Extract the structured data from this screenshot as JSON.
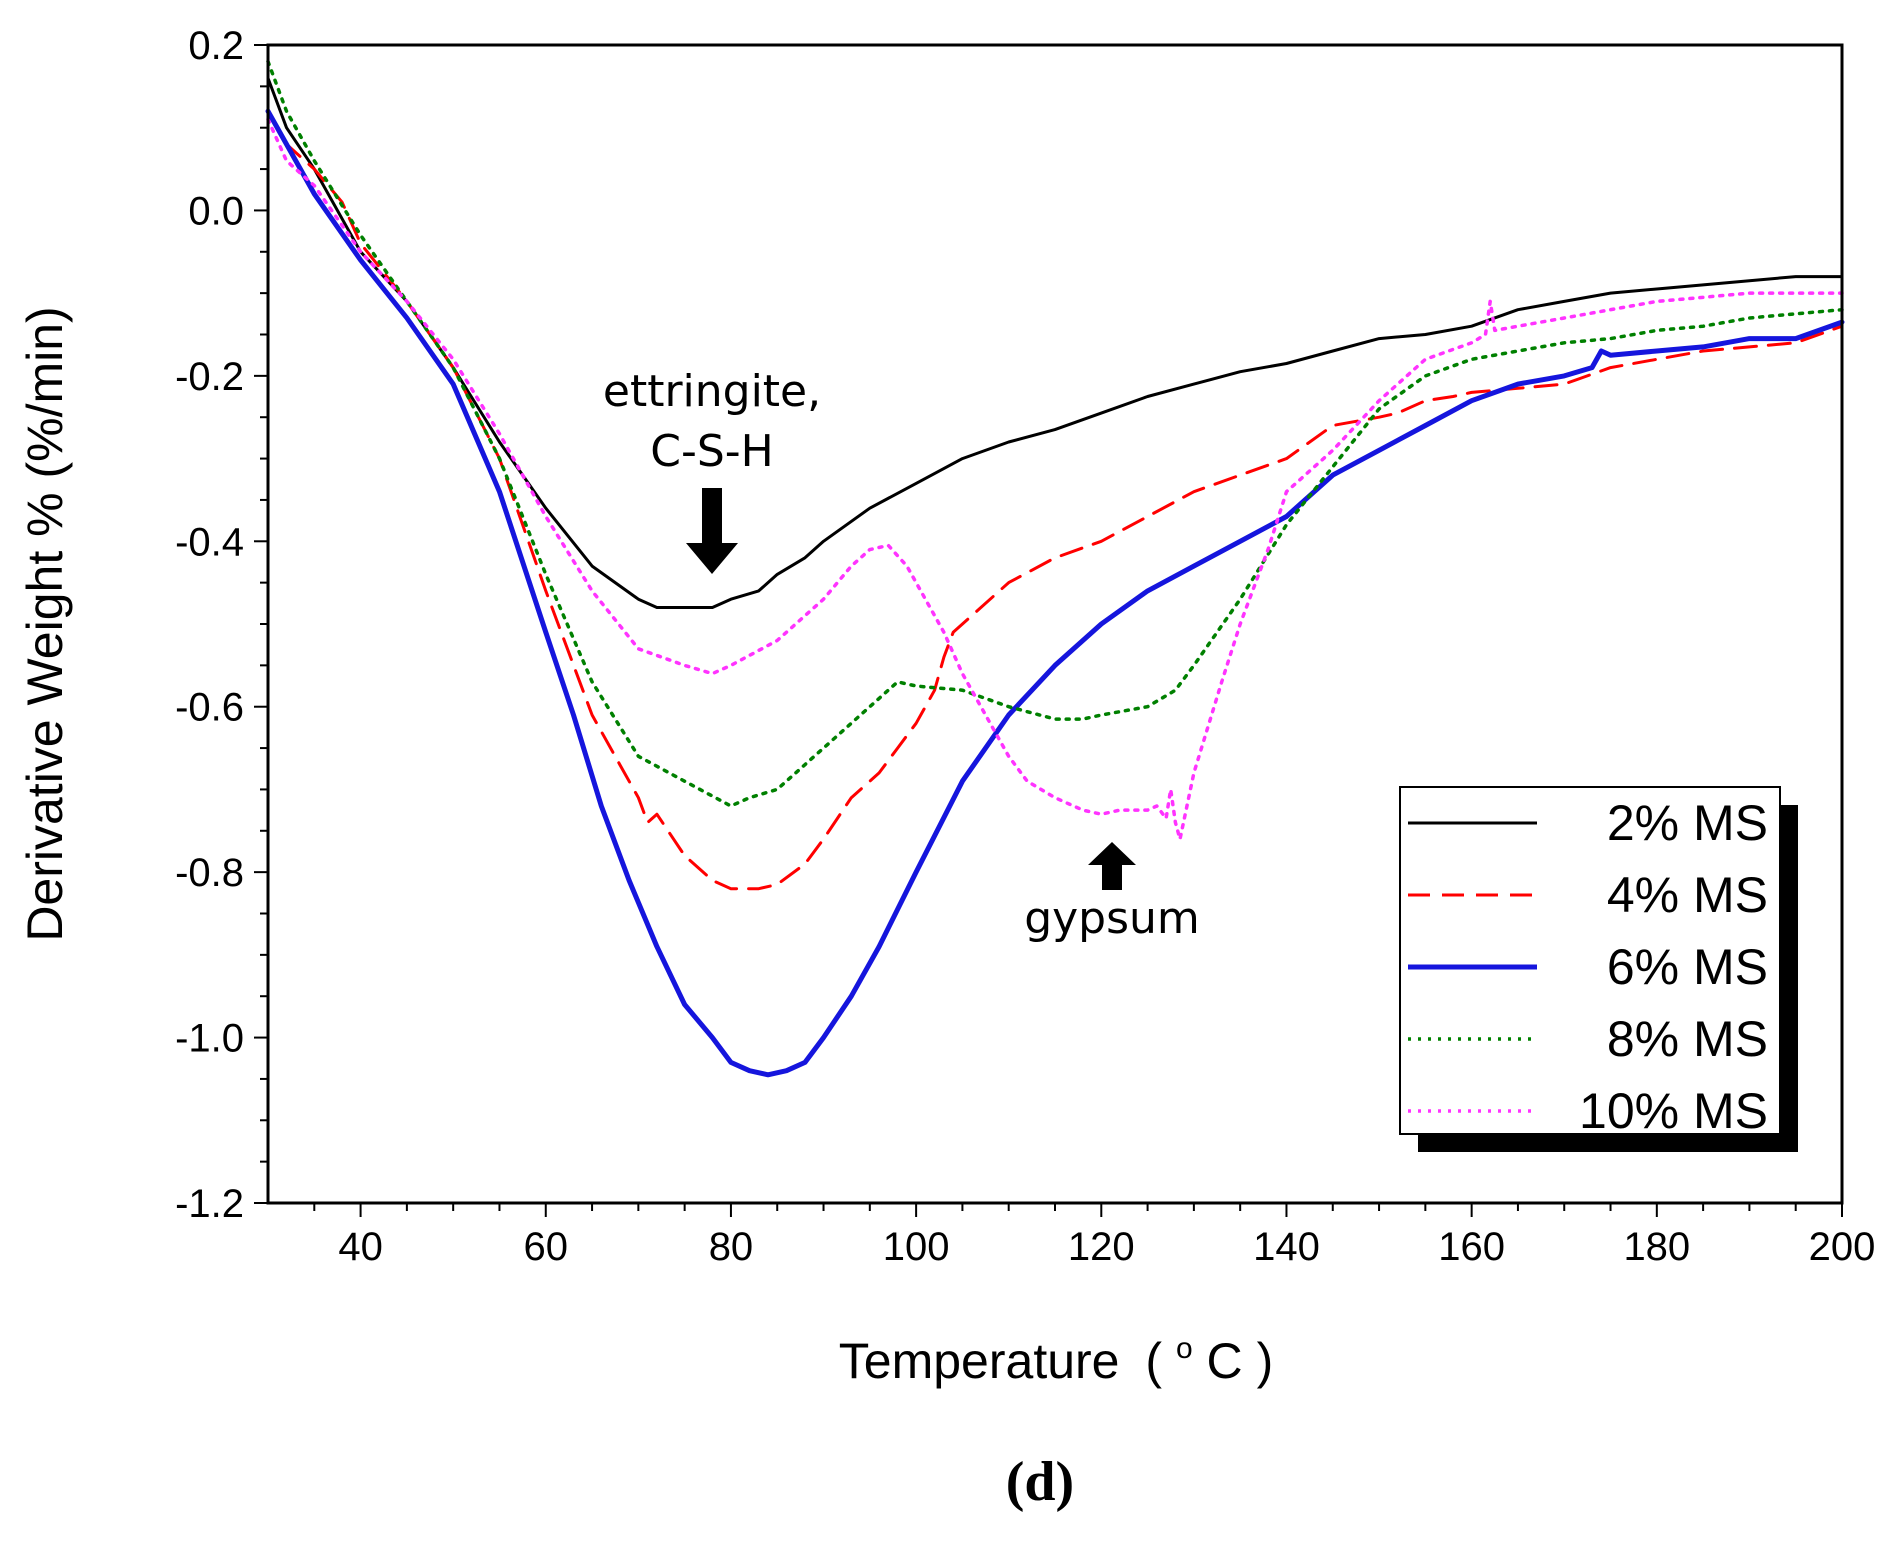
{
  "chart_data": {
    "type": "line",
    "title": "",
    "xlabel": "Temperature",
    "xlabel_sup": "o",
    "xlabel_unit": "C",
    "xlabel_open": "(",
    "xlabel_close": ")",
    "ylabel": "Derivative Weight % (%/min)",
    "xlim": [
      30,
      200
    ],
    "ylim": [
      -1.2,
      0.2
    ],
    "xticks": [
      40,
      60,
      80,
      100,
      120,
      140,
      160,
      180,
      200
    ],
    "xtick_labels": [
      "40",
      "60",
      "80",
      "100",
      "120",
      "140",
      "160",
      "180",
      "200"
    ],
    "yticks": [
      0.2,
      0.0,
      -0.2,
      -0.4,
      -0.6,
      -0.8,
      -1.0,
      -1.2
    ],
    "ytick_labels": [
      "0.2",
      "0.0",
      "-0.2",
      "-0.4",
      "-0.6",
      "-0.8",
      "-1.0",
      "-1.2"
    ],
    "legend_position": "bottom-right",
    "series": [
      {
        "name": "2% MS",
        "color": "#000000",
        "style": "solid",
        "x": [
          30,
          32,
          35,
          40,
          45,
          50,
          55,
          60,
          65,
          70,
          72,
          75,
          78,
          80,
          83,
          85,
          88,
          90,
          95,
          100,
          105,
          110,
          115,
          120,
          125,
          130,
          135,
          140,
          145,
          150,
          155,
          160,
          165,
          170,
          175,
          180,
          185,
          190,
          195,
          200
        ],
        "y": [
          0.16,
          0.1,
          0.05,
          -0.05,
          -0.11,
          -0.19,
          -0.28,
          -0.36,
          -0.43,
          -0.47,
          -0.48,
          -0.48,
          -0.48,
          -0.47,
          -0.46,
          -0.44,
          -0.42,
          -0.4,
          -0.36,
          -0.33,
          -0.3,
          -0.28,
          -0.265,
          -0.245,
          -0.225,
          -0.21,
          -0.195,
          -0.185,
          -0.17,
          -0.155,
          -0.15,
          -0.14,
          -0.12,
          -0.11,
          -0.1,
          -0.095,
          -0.09,
          -0.085,
          -0.08,
          -0.08
        ]
      },
      {
        "name": "4% MS",
        "color": "#ff0000",
        "style": "dashed",
        "x": [
          30,
          32,
          35,
          38,
          40,
          45,
          50,
          55,
          60,
          65,
          68,
          70,
          71,
          72,
          75,
          78,
          80,
          83,
          85,
          88,
          90,
          93,
          96,
          98,
          100,
          101,
          102,
          103,
          104,
          106,
          110,
          115,
          120,
          125,
          130,
          135,
          140,
          145,
          150,
          152,
          155,
          158,
          160,
          165,
          170,
          175,
          180,
          185,
          190,
          195,
          200
        ],
        "y": [
          0.12,
          0.08,
          0.05,
          0.01,
          -0.04,
          -0.11,
          -0.19,
          -0.3,
          -0.46,
          -0.61,
          -0.67,
          -0.71,
          -0.74,
          -0.73,
          -0.78,
          -0.81,
          -0.82,
          -0.82,
          -0.815,
          -0.79,
          -0.76,
          -0.71,
          -0.68,
          -0.65,
          -0.62,
          -0.6,
          -0.58,
          -0.54,
          -0.51,
          -0.49,
          -0.45,
          -0.42,
          -0.4,
          -0.37,
          -0.34,
          -0.32,
          -0.3,
          -0.26,
          -0.25,
          -0.245,
          -0.23,
          -0.225,
          -0.22,
          -0.215,
          -0.21,
          -0.19,
          -0.18,
          -0.17,
          -0.165,
          -0.16,
          -0.14
        ]
      },
      {
        "name": "6% MS",
        "color": "#1515dd",
        "style": "solid",
        "x": [
          30,
          33,
          35,
          40,
          45,
          50,
          55,
          60,
          63,
          66,
          69,
          72,
          75,
          78,
          80,
          82,
          84,
          86,
          88,
          90,
          93,
          96,
          100,
          105,
          110,
          115,
          120,
          125,
          130,
          135,
          140,
          141,
          145,
          150,
          155,
          160,
          165,
          170,
          173,
          174,
          175,
          180,
          185,
          190,
          195,
          200
        ],
        "y": [
          0.12,
          0.06,
          0.02,
          -0.06,
          -0.13,
          -0.21,
          -0.34,
          -0.51,
          -0.61,
          -0.72,
          -0.81,
          -0.89,
          -0.96,
          -1.0,
          -1.03,
          -1.04,
          -1.045,
          -1.04,
          -1.03,
          -1.0,
          -0.95,
          -0.89,
          -0.8,
          -0.69,
          -0.61,
          -0.55,
          -0.5,
          -0.46,
          -0.43,
          -0.4,
          -0.37,
          -0.36,
          -0.32,
          -0.29,
          -0.26,
          -0.23,
          -0.21,
          -0.2,
          -0.19,
          -0.17,
          -0.175,
          -0.17,
          -0.165,
          -0.155,
          -0.155,
          -0.135
        ]
      },
      {
        "name": "8% MS",
        "color": "#008000",
        "style": "dotted",
        "x": [
          30,
          32,
          35,
          40,
          45,
          50,
          55,
          60,
          65,
          70,
          75,
          80,
          82,
          85,
          90,
          95,
          98,
          100,
          105,
          110,
          115,
          118,
          120,
          125,
          128,
          130,
          135,
          140,
          145,
          150,
          155,
          160,
          165,
          170,
          175,
          180,
          185,
          190,
          195,
          200
        ],
        "y": [
          0.18,
          0.12,
          0.06,
          -0.03,
          -0.11,
          -0.19,
          -0.3,
          -0.44,
          -0.57,
          -0.66,
          -0.69,
          -0.72,
          -0.71,
          -0.7,
          -0.65,
          -0.6,
          -0.57,
          -0.575,
          -0.58,
          -0.6,
          -0.615,
          -0.615,
          -0.61,
          -0.6,
          -0.58,
          -0.55,
          -0.47,
          -0.38,
          -0.31,
          -0.24,
          -0.2,
          -0.18,
          -0.17,
          -0.16,
          -0.155,
          -0.145,
          -0.14,
          -0.13,
          -0.125,
          -0.12
        ]
      },
      {
        "name": "10% MS",
        "color": "#ff33ff",
        "style": "dotted",
        "x": [
          30,
          32,
          35,
          40,
          45,
          50,
          55,
          60,
          65,
          70,
          75,
          78,
          80,
          85,
          90,
          93,
          95,
          97,
          99,
          101,
          103,
          105,
          108,
          110,
          112,
          115,
          118,
          120,
          122,
          125,
          126,
          127,
          127.5,
          128,
          128.5,
          130,
          133,
          135,
          138,
          140,
          145,
          150,
          155,
          160,
          161.5,
          162,
          162.5,
          165,
          170,
          175,
          180,
          185,
          190,
          195,
          200
        ],
        "y": [
          0.11,
          0.06,
          0.03,
          -0.05,
          -0.11,
          -0.18,
          -0.27,
          -0.37,
          -0.46,
          -0.53,
          -0.55,
          -0.56,
          -0.55,
          -0.52,
          -0.47,
          -0.43,
          -0.41,
          -0.405,
          -0.43,
          -0.47,
          -0.51,
          -0.56,
          -0.62,
          -0.66,
          -0.69,
          -0.71,
          -0.725,
          -0.73,
          -0.725,
          -0.725,
          -0.72,
          -0.735,
          -0.7,
          -0.74,
          -0.76,
          -0.68,
          -0.57,
          -0.5,
          -0.41,
          -0.34,
          -0.29,
          -0.23,
          -0.18,
          -0.16,
          -0.15,
          -0.11,
          -0.145,
          -0.14,
          -0.13,
          -0.12,
          -0.11,
          -0.105,
          -0.1,
          -0.1,
          -0.1
        ]
      }
    ],
    "annotations": [
      {
        "name": "ettringite",
        "lines": [
          "ettringite,",
          "C-S-H"
        ],
        "x": 78,
        "y": -0.46,
        "arrow": "down"
      },
      {
        "name": "gypsum",
        "lines": [
          "gypsum"
        ],
        "x": 121,
        "y": -0.76,
        "arrow": "up"
      }
    ]
  },
  "panel_label": "(d)"
}
